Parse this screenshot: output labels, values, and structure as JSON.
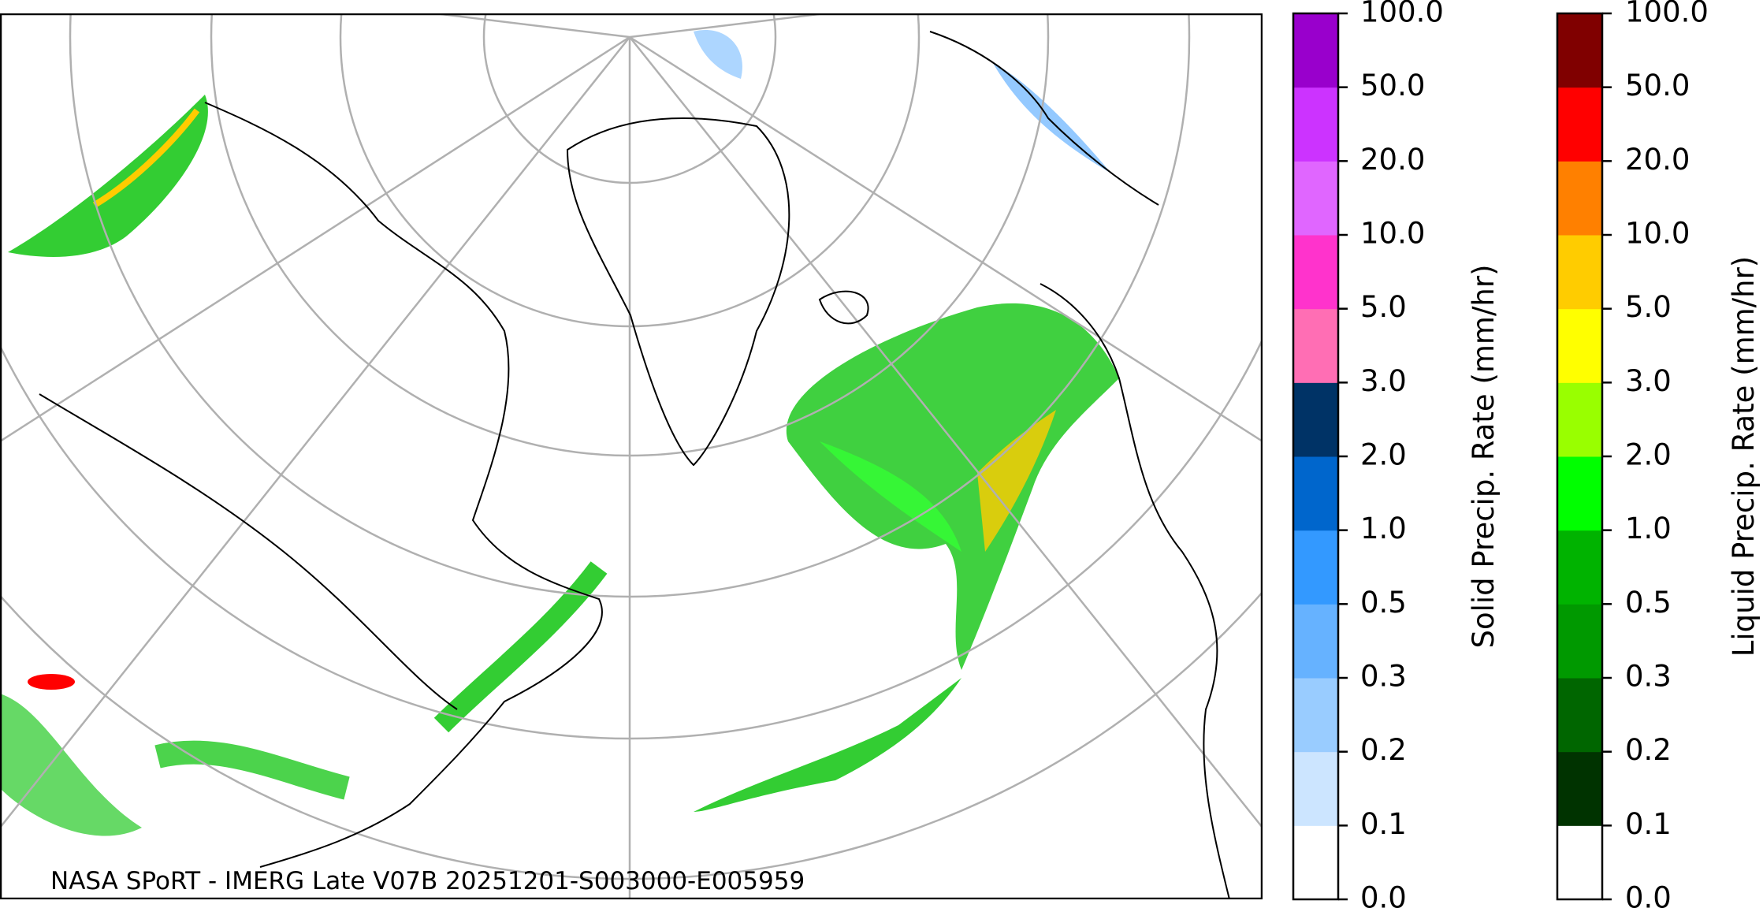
{
  "map": {
    "credit": "NASA SPoRT - IMERG Late V07B 20251201-S003000-E005959"
  },
  "colorbars": [
    {
      "label": "Solid Precip. Rate (mm/hr)",
      "colors": [
        "#ffffff",
        "#cce5ff",
        "#99ccff",
        "#66b2ff",
        "#3399ff",
        "#0066cc",
        "#003366",
        "#ff6eb4",
        "#ff33cc",
        "#e066ff",
        "#cc33ff",
        "#9900cc"
      ],
      "ticks": [
        {
          "value": 0,
          "label": "0.0"
        },
        0.1,
        0.2,
        0.3,
        0.5,
        {
          "value": 1,
          "label": "1.0"
        },
        {
          "value": 2,
          "label": "2.0"
        },
        {
          "value": 3,
          "label": "3.0"
        },
        {
          "value": 5,
          "label": "5.0"
        },
        {
          "value": 10,
          "label": "10.0"
        },
        {
          "value": 20,
          "label": "20.0"
        },
        {
          "value": 50,
          "label": "50.0"
        },
        {
          "value": 100,
          "label": "100.0"
        }
      ]
    },
    {
      "label": "Liquid Precip. Rate (mm/hr)",
      "colors": [
        "#ffffff",
        "#003300",
        "#006600",
        "#009900",
        "#00b300",
        "#00ff00",
        "#99ff00",
        "#ffff00",
        "#ffcc00",
        "#ff8000",
        "#ff0000",
        "#800000",
        "#400000"
      ],
      "ticks": [
        {
          "value": 0,
          "label": "0.0"
        },
        0.1,
        0.2,
        0.3,
        0.5,
        {
          "value": 1,
          "label": "1.0"
        },
        {
          "value": 2,
          "label": "2.0"
        },
        {
          "value": 3,
          "label": "3.0"
        },
        {
          "value": 5,
          "label": "5.0"
        },
        {
          "value": 10,
          "label": "10.0"
        },
        {
          "value": 20,
          "label": "20.0"
        },
        {
          "value": 50,
          "label": "50.0"
        },
        {
          "value": 100,
          "label": "100.0"
        }
      ]
    }
  ]
}
